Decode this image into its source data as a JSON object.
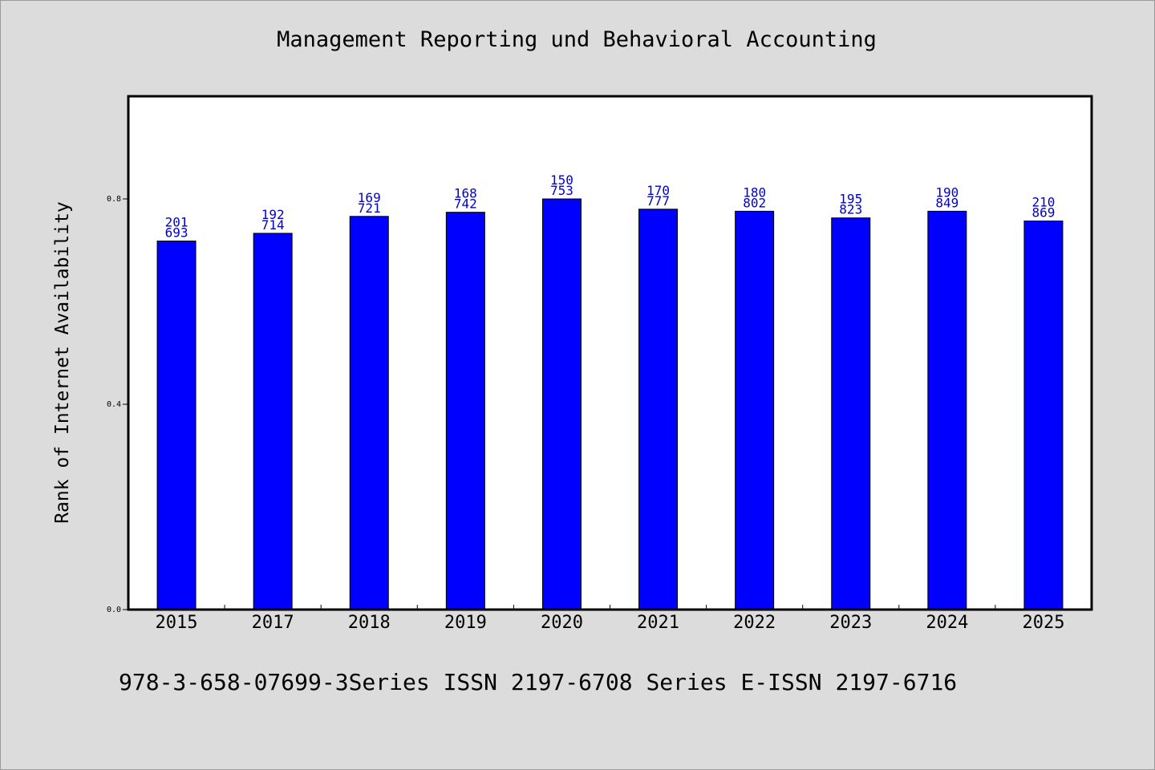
{
  "chart_data": {
    "type": "bar",
    "title": "Management Reporting und Behavioral Accounting",
    "xlabel": "",
    "ylabel": "Rank of Internet Availability",
    "ylim": [
      0,
      1
    ],
    "yticks": [
      0.0,
      0.4,
      0.8
    ],
    "ytick_labels": [
      "0.0",
      "0.4",
      "0.8"
    ],
    "categories": [
      "2015",
      "2017",
      "2018",
      "2019",
      "2020",
      "2021",
      "2022",
      "2023",
      "2024",
      "2025"
    ],
    "values": [
      0.718,
      0.733,
      0.766,
      0.774,
      0.8,
      0.78,
      0.776,
      0.763,
      0.776,
      0.757
    ],
    "labels_top": [
      "201",
      "192",
      "169",
      "168",
      "150",
      "170",
      "180",
      "195",
      "190",
      "210"
    ],
    "labels_bottom": [
      "693",
      "714",
      "721",
      "742",
      "753",
      "777",
      "802",
      "823",
      "849",
      "869"
    ],
    "grid": false,
    "colors": {
      "bar": "#0000ff",
      "label": "#0000cc",
      "background": "#dcdcdc",
      "plot": "#ffffff"
    }
  },
  "footer": "978-3-658-07699-3Series ISSN 2197-6708 Series E-ISSN 2197-6716"
}
